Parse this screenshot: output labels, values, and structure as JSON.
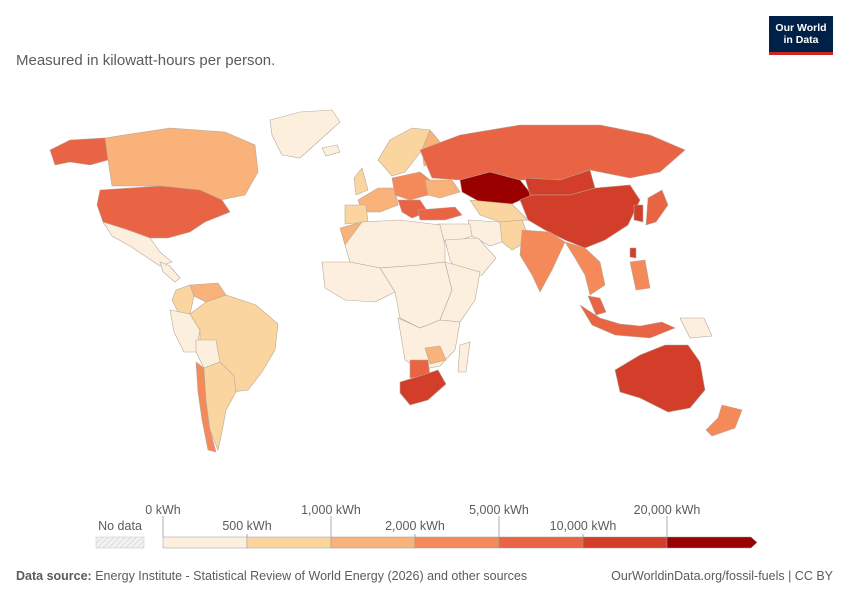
{
  "subtitle": "Measured in kilowatt-hours per person.",
  "logo": {
    "line1": "Our World",
    "line2": "in Data"
  },
  "legend": {
    "no_data_label": "No data",
    "top_labels": [
      "0 kWh",
      "1,000 kWh",
      "5,000 kWh",
      "20,000 kWh"
    ],
    "bottom_labels": [
      "500 kWh",
      "2,000 kWh",
      "10,000 kWh"
    ],
    "bins": [
      {
        "color": "#fdefdd"
      },
      {
        "color": "#fbd59f"
      },
      {
        "color": "#f8b27a"
      },
      {
        "color": "#f48a5a"
      },
      {
        "color": "#e86444"
      },
      {
        "color": "#d33e2a"
      },
      {
        "color": "#9a0000"
      }
    ],
    "no_data_color": "#eeeeee"
  },
  "footer": {
    "source_label": "Data source:",
    "source_text": "Energy Institute - Statistical Review of World Energy (2026) and other sources",
    "link_text": "OurWorldinData.org/fossil-fuels | CC BY"
  },
  "regions": [
    {
      "name": "Canada",
      "color": "#f8b27a"
    },
    {
      "name": "Alaska",
      "color": "#e86444"
    },
    {
      "name": "Greenland",
      "color": "#fdefdd"
    },
    {
      "name": "United States",
      "color": "#e86444"
    },
    {
      "name": "Mexico",
      "color": "#fdefdd"
    },
    {
      "name": "Central America",
      "color": "#fdefdd"
    },
    {
      "name": "Venezuela",
      "color": "#f8b27a"
    },
    {
      "name": "Colombia",
      "color": "#fbd59f"
    },
    {
      "name": "Peru",
      "color": "#fdefdd"
    },
    {
      "name": "Brazil",
      "color": "#fbd59f"
    },
    {
      "name": "Bolivia",
      "color": "#fdefdd"
    },
    {
      "name": "Chile",
      "color": "#f48a5a"
    },
    {
      "name": "Argentina",
      "color": "#fbd59f"
    },
    {
      "name": "Iceland",
      "color": "#fdefdd"
    },
    {
      "name": "Scandinavia",
      "color": "#fbd59f"
    },
    {
      "name": "Finland",
      "color": "#f8b27a"
    },
    {
      "name": "UK",
      "color": "#fbd59f"
    },
    {
      "name": "Western Europe",
      "color": "#f8b27a"
    },
    {
      "name": "Iberia",
      "color": "#fbd59f"
    },
    {
      "name": "Central Europe",
      "color": "#f48a5a"
    },
    {
      "name": "Balkans",
      "color": "#e86444"
    },
    {
      "name": "Ukraine",
      "color": "#f8b27a"
    },
    {
      "name": "Turkey",
      "color": "#e86444"
    },
    {
      "name": "Russia",
      "color": "#e86444"
    },
    {
      "name": "Kazakhstan",
      "color": "#9a0000"
    },
    {
      "name": "Mongolia",
      "color": "#d33e2a"
    },
    {
      "name": "China",
      "color": "#d33e2a"
    },
    {
      "name": "Central Asia",
      "color": "#fbd59f"
    },
    {
      "name": "Iran",
      "color": "#fdefdd"
    },
    {
      "name": "Middle East",
      "color": "#fdefdd"
    },
    {
      "name": "Arabia",
      "color": "#fdefdd"
    },
    {
      "name": "Pakistan",
      "color": "#fbd59f"
    },
    {
      "name": "India",
      "color": "#f48a5a"
    },
    {
      "name": "Southeast Asia",
      "color": "#f48a5a"
    },
    {
      "name": "Malaysia",
      "color": "#e86444"
    },
    {
      "name": "Indonesia",
      "color": "#e86444"
    },
    {
      "name": "Philippines",
      "color": "#f48a5a"
    },
    {
      "name": "South Korea",
      "color": "#d33e2a"
    },
    {
      "name": "Japan",
      "color": "#e86444"
    },
    {
      "name": "Taiwan",
      "color": "#d33e2a"
    },
    {
      "name": "Papua New Guinea",
      "color": "#fdefdd"
    },
    {
      "name": "Morocco",
      "color": "#f8b27a"
    },
    {
      "name": "North Africa",
      "color": "#fdefdd"
    },
    {
      "name": "West Africa",
      "color": "#fdefdd"
    },
    {
      "name": "Central Africa",
      "color": "#fdefdd"
    },
    {
      "name": "East Africa",
      "color": "#fdefdd"
    },
    {
      "name": "Southern Africa",
      "color": "#fdefdd"
    },
    {
      "name": "Zimbabwe",
      "color": "#f8b27a"
    },
    {
      "name": "Botswana",
      "color": "#e86444"
    },
    {
      "name": "South Africa",
      "color": "#d33e2a"
    },
    {
      "name": "Madagascar",
      "color": "#fdefdd"
    },
    {
      "name": "Australia",
      "color": "#d33e2a"
    },
    {
      "name": "New Zealand",
      "color": "#f48a5a"
    }
  ]
}
